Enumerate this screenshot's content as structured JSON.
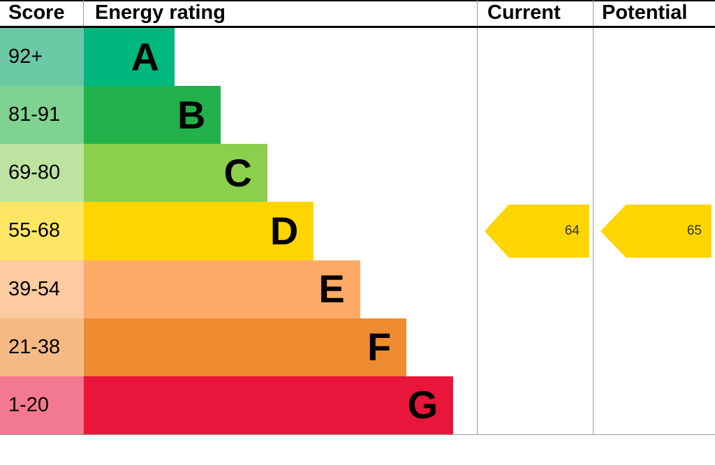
{
  "header": {
    "score": "Score",
    "energy_rating": "Energy rating",
    "current": "Current",
    "potential": "Potential"
  },
  "chart_data": {
    "type": "bar",
    "title": "Energy rating (EPC) chart",
    "bands": [
      {
        "score": "92+",
        "letter": "A",
        "bar_color": "#00b77d",
        "score_color": "#6cc9a6",
        "width_pct": 23.1
      },
      {
        "score": "81-91",
        "letter": "B",
        "bar_color": "#22b24c",
        "score_color": "#7fd290",
        "width_pct": 34.9
      },
      {
        "score": "69-80",
        "letter": "C",
        "bar_color": "#8ccf4c",
        "score_color": "#bce3a0",
        "width_pct": 46.7
      },
      {
        "score": "55-68",
        "letter": "D",
        "bar_color": "#ffd500",
        "score_color": "#ffe664",
        "width_pct": 58.5
      },
      {
        "score": "39-54",
        "letter": "E",
        "bar_color": "#fcaa65",
        "score_color": "#fdcba1",
        "width_pct": 70.3
      },
      {
        "score": "21-38",
        "letter": "F",
        "bar_color": "#ee8b31",
        "score_color": "#f5ba83",
        "width_pct": 82.1
      },
      {
        "score": "1-20",
        "letter": "G",
        "bar_color": "#e9153b",
        "score_color": "#f2798f",
        "width_pct": 94.0
      }
    ],
    "current": {
      "value": 64,
      "band": "D",
      "arrow_color": "#ffd500"
    },
    "potential": {
      "value": 65,
      "band": "D",
      "arrow_color": "#ffd500"
    }
  }
}
